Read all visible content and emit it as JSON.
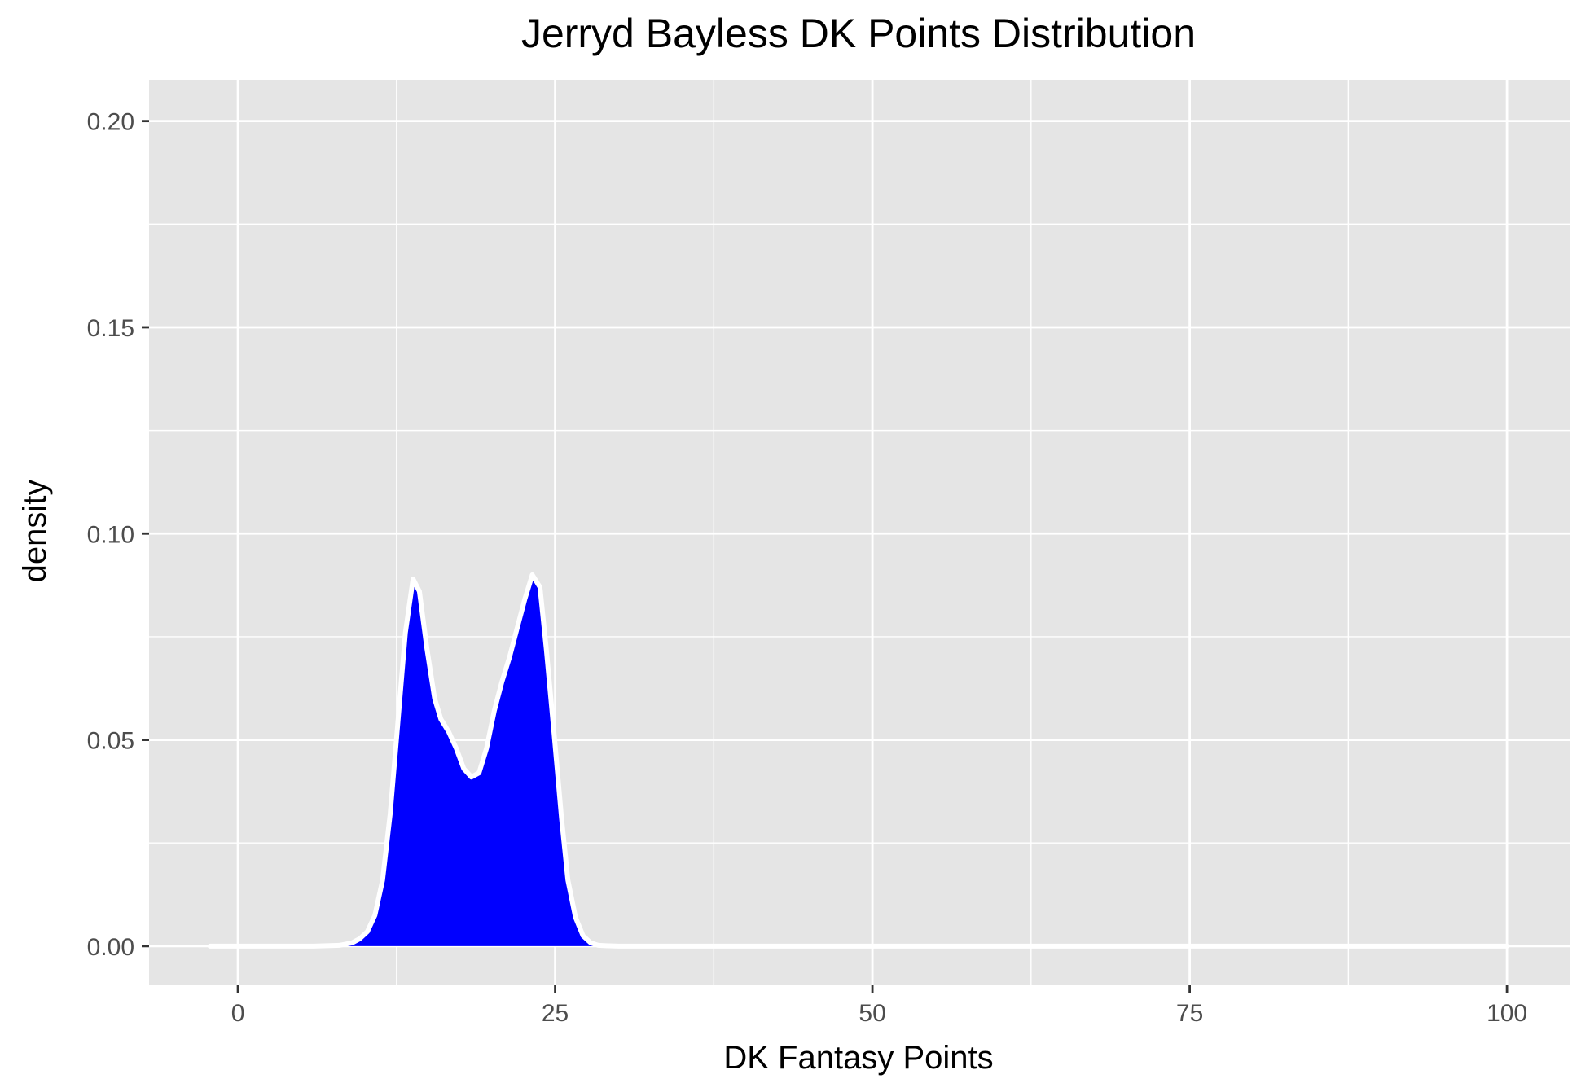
{
  "chart_data": {
    "type": "area",
    "title": "Jerryd Bayless DK Points Distribution",
    "xlabel": "DK Fantasy Points",
    "ylabel": "density",
    "xlim": [
      -7,
      105
    ],
    "ylim": [
      -0.0095,
      0.21
    ],
    "x_ticks": [
      {
        "value": 0,
        "label": "0"
      },
      {
        "value": 25,
        "label": "25"
      },
      {
        "value": 50,
        "label": "50"
      },
      {
        "value": 75,
        "label": "75"
      },
      {
        "value": 100,
        "label": "100"
      }
    ],
    "y_ticks": [
      {
        "value": 0.0,
        "label": "0.00"
      },
      {
        "value": 0.05,
        "label": "0.05"
      },
      {
        "value": 0.1,
        "label": "0.10"
      },
      {
        "value": 0.15,
        "label": "0.15"
      },
      {
        "value": 0.2,
        "label": "0.20"
      }
    ],
    "grid": true,
    "background_color": "#e5e5e5",
    "grid_color": "#ffffff",
    "fill_color": "#0000ff",
    "line_color": "#ffffff",
    "series": [
      {
        "x": [
          -2.2,
          2,
          6,
          8,
          9,
          9.6,
          10.2,
          10.8,
          11.4,
          12,
          12.6,
          13.2,
          13.8,
          14.3,
          14.9,
          15.5,
          16,
          16.6,
          17.2,
          17.8,
          18.4,
          19,
          19.6,
          20.2,
          20.8,
          21.4,
          22,
          22.6,
          23.2,
          23.8,
          24.3,
          24.9,
          25.5,
          26,
          26.6,
          27.2,
          27.8,
          28.4,
          29,
          30,
          32,
          36,
          45,
          60,
          80,
          100
        ],
        "y": [
          0,
          0,
          0,
          0.0002,
          0.0008,
          0.0018,
          0.0035,
          0.0075,
          0.016,
          0.032,
          0.054,
          0.076,
          0.089,
          0.086,
          0.072,
          0.06,
          0.055,
          0.052,
          0.048,
          0.043,
          0.041,
          0.042,
          0.048,
          0.057,
          0.064,
          0.07,
          0.077,
          0.084,
          0.09,
          0.087,
          0.072,
          0.052,
          0.031,
          0.016,
          0.007,
          0.0025,
          0.0008,
          0.0002,
          0.0001,
          0,
          0,
          0,
          0,
          0,
          0,
          0
        ]
      }
    ]
  }
}
